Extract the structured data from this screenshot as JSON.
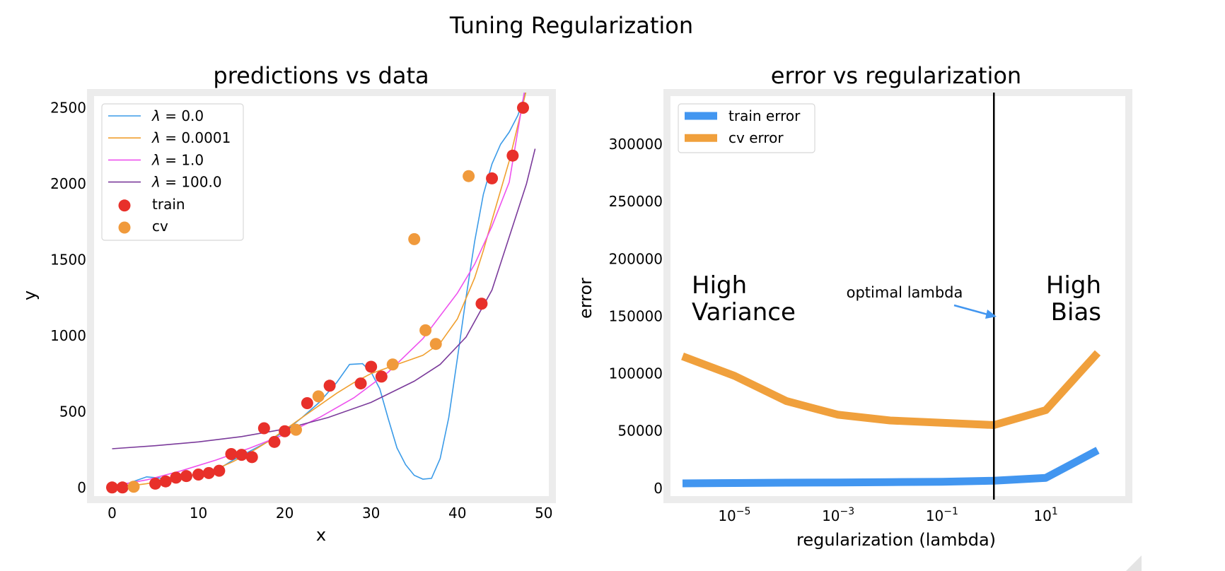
{
  "figure": {
    "suptitle": "Tuning Regularization"
  },
  "chart_data": [
    {
      "type": "scatter",
      "title": "predictions vs data",
      "xlabel": "x",
      "ylabel": "y",
      "xlim": [
        -2.5,
        51
      ],
      "ylim": [
        -80,
        2600
      ],
      "xticks": [
        0,
        10,
        20,
        30,
        40,
        50
      ],
      "yticks": [
        0,
        500,
        1000,
        1500,
        2000,
        2500
      ],
      "legend_position": "upper left",
      "lines": [
        {
          "name": "λ = 0.0",
          "label_var": "λ",
          "label_val": " = 0.0",
          "color": "#3b9be8",
          "points": [
            [
              0,
              0
            ],
            [
              2,
              30
            ],
            [
              4,
              70
            ],
            [
              6,
              60
            ],
            [
              8,
              70
            ],
            [
              10,
              85
            ],
            [
              12,
              110
            ],
            [
              14,
              180
            ],
            [
              16,
              240
            ],
            [
              18,
              300
            ],
            [
              20,
              370
            ],
            [
              22,
              460
            ],
            [
              24,
              560
            ],
            [
              26,
              690
            ],
            [
              27.5,
              810
            ],
            [
              29,
              815
            ],
            [
              30,
              760
            ],
            [
              31,
              650
            ],
            [
              32,
              450
            ],
            [
              33,
              260
            ],
            [
              34,
              150
            ],
            [
              35,
              80
            ],
            [
              36,
              55
            ],
            [
              37,
              60
            ],
            [
              38,
              190
            ],
            [
              39,
              460
            ],
            [
              40,
              850
            ],
            [
              41,
              1250
            ],
            [
              42,
              1620
            ],
            [
              43,
              1930
            ],
            [
              44,
              2130
            ],
            [
              45,
              2260
            ],
            [
              46,
              2340
            ],
            [
              47,
              2450
            ],
            [
              48,
              2620
            ]
          ]
        },
        {
          "name": "λ = 0.0001",
          "label_var": "λ",
          "label_val": " = 0.0001",
          "color": "#f0a030",
          "points": [
            [
              0,
              0
            ],
            [
              2,
              10
            ],
            [
              4,
              25
            ],
            [
              6,
              45
            ],
            [
              8,
              70
            ],
            [
              10,
              90
            ],
            [
              12,
              120
            ],
            [
              14,
              170
            ],
            [
              16,
              230
            ],
            [
              18,
              300
            ],
            [
              20,
              380
            ],
            [
              22,
              460
            ],
            [
              24,
              540
            ],
            [
              26,
              620
            ],
            [
              28,
              690
            ],
            [
              30,
              750
            ],
            [
              32,
              790
            ],
            [
              34,
              830
            ],
            [
              36,
              870
            ],
            [
              38,
              950
            ],
            [
              40,
              1110
            ],
            [
              42,
              1380
            ],
            [
              43,
              1560
            ],
            [
              44,
              1760
            ],
            [
              46,
              2150
            ],
            [
              48,
              2620
            ]
          ]
        },
        {
          "name": "λ = 1.0",
          "label_var": "λ",
          "label_val": " = 1.0",
          "color": "#ee52ee",
          "points": [
            [
              0,
              10
            ],
            [
              4,
              50
            ],
            [
              8,
              110
            ],
            [
              12,
              180
            ],
            [
              16,
              260
            ],
            [
              20,
              350
            ],
            [
              24,
              460
            ],
            [
              28,
              590
            ],
            [
              32,
              760
            ],
            [
              36,
              980
            ],
            [
              40,
              1280
            ],
            [
              42,
              1470
            ],
            [
              44,
              1720
            ],
            [
              46,
              2010
            ],
            [
              47.8,
              2620
            ]
          ]
        },
        {
          "name": "λ = 100.0",
          "label_var": "λ",
          "label_val": " = 100.0",
          "color": "#7b3b9b",
          "points": [
            [
              0,
              255
            ],
            [
              5,
              275
            ],
            [
              10,
              300
            ],
            [
              15,
              335
            ],
            [
              20,
              385
            ],
            [
              25,
              460
            ],
            [
              30,
              560
            ],
            [
              35,
              700
            ],
            [
              38,
              810
            ],
            [
              41,
              990
            ],
            [
              44,
              1300
            ],
            [
              46,
              1650
            ],
            [
              48,
              2000
            ],
            [
              49,
              2230
            ]
          ]
        }
      ],
      "series": [
        {
          "name": "train",
          "color": "#e8302a",
          "x": [
            0,
            1.2,
            5,
            6.2,
            7.4,
            8.6,
            10,
            11.2,
            12.4,
            13.8,
            15,
            16.2,
            17.6,
            18.8,
            20,
            22.6,
            25.2,
            28.8,
            30,
            31.2,
            42.8,
            44,
            46.4,
            47.6
          ],
          "y": [
            0,
            0,
            25,
            40,
            65,
            75,
            85,
            95,
            110,
            220,
            215,
            200,
            390,
            300,
            370,
            555,
            670,
            685,
            795,
            730,
            1210,
            2035,
            2185,
            2500
          ]
        },
        {
          "name": "cv",
          "color": "#f09a3c",
          "x": [
            2.5,
            21.3,
            23.9,
            32.5,
            35,
            36.3,
            37.5,
            41.3
          ],
          "y": [
            5,
            380,
            600,
            810,
            1635,
            1035,
            945,
            2050
          ]
        }
      ]
    },
    {
      "type": "line",
      "title": "error vs regularization",
      "xlabel": "regularization (lambda)",
      "ylabel": "error",
      "xscale": "log",
      "xlim_log10": [
        -6.3,
        2.6
      ],
      "ylim": [
        -10000,
        345000
      ],
      "xticks": [
        {
          "base": "10",
          "exp": "−5"
        },
        {
          "base": "10",
          "exp": "−3"
        },
        {
          "base": "10",
          "exp": "−1"
        },
        {
          "base": "10",
          "exp": "1"
        }
      ],
      "xticks_log10": [
        -5,
        -3,
        -1,
        1
      ],
      "yticks": [
        0,
        50000,
        100000,
        150000,
        200000,
        250000,
        300000
      ],
      "legend_position": "upper left",
      "x": [
        1e-06,
        1e-05,
        0.0001,
        0.001,
        0.01,
        0.1,
        1,
        10,
        100
      ],
      "series": [
        {
          "name": "train error",
          "color": "#4296f0",
          "y": [
            4200,
            4500,
            4800,
            5000,
            5300,
            5600,
            6500,
            9000,
            33000
          ]
        },
        {
          "name": "cv error",
          "color": "#f0a03c",
          "y": [
            115000,
            98000,
            76000,
            64000,
            59000,
            57000,
            55000,
            68000,
            118000
          ]
        }
      ],
      "vline": {
        "x": 1,
        "color": "#000000"
      },
      "annotations": {
        "optimal": "optimal lambda",
        "variance_1": "High",
        "variance_2": "Variance",
        "bias_1": "High",
        "bias_2": "Bias",
        "accent": "#4296f0"
      }
    }
  ]
}
